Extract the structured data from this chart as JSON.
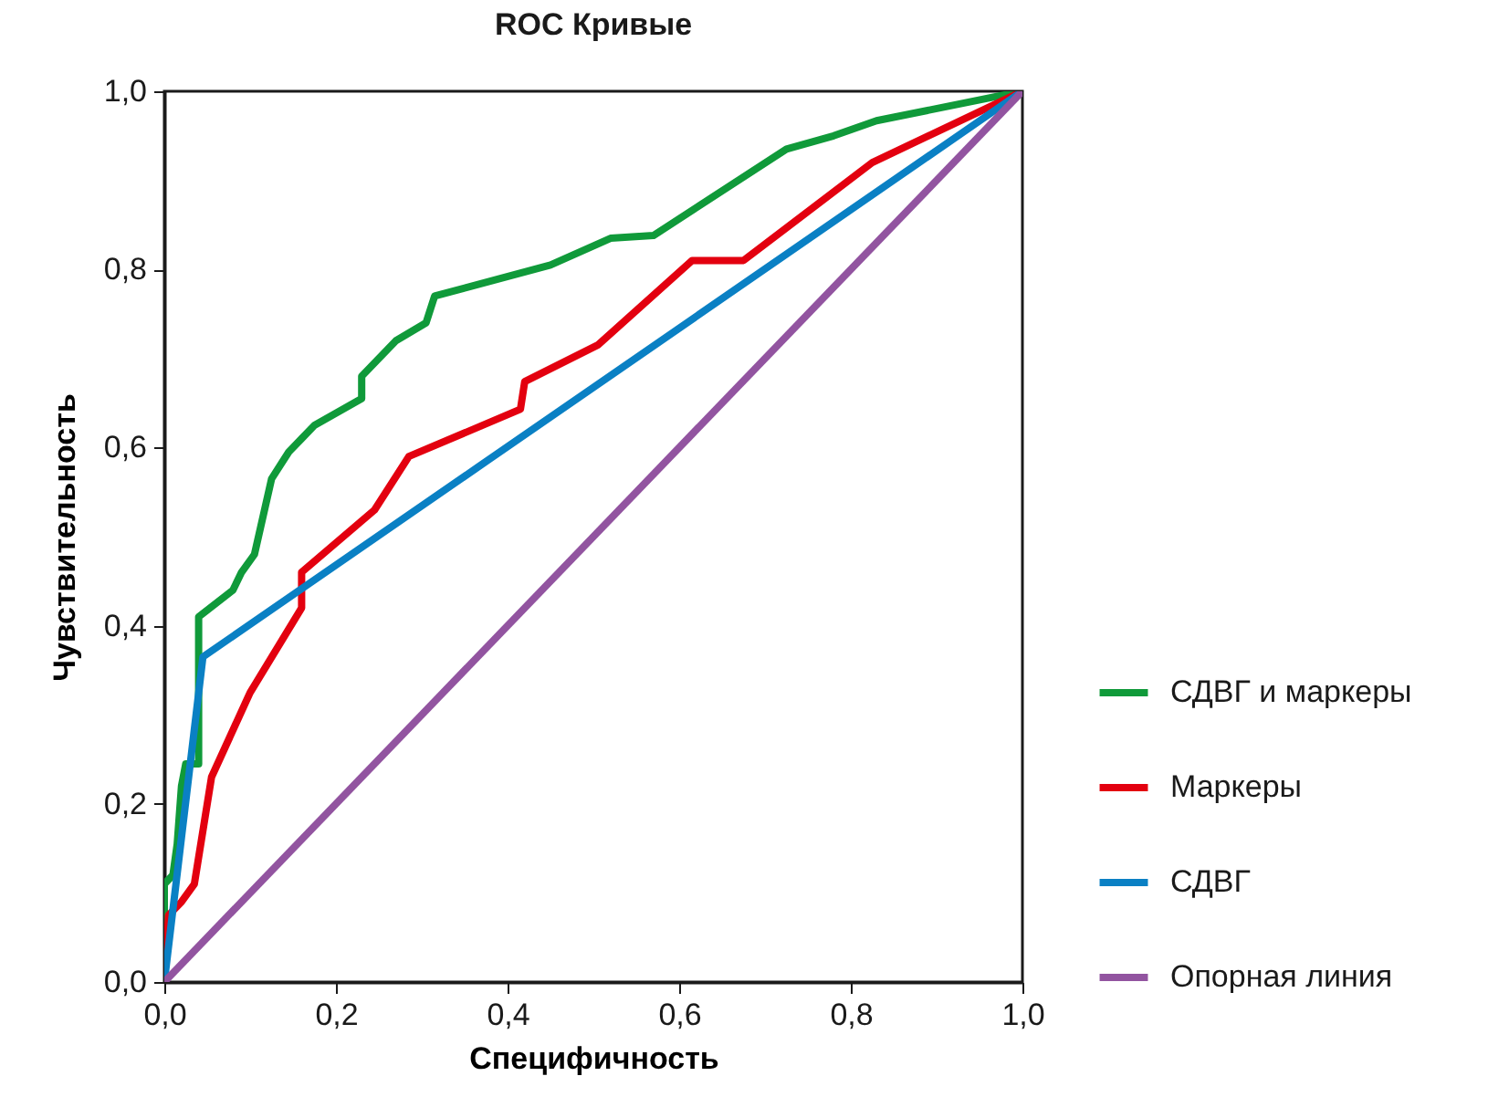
{
  "chart_data": {
    "type": "line",
    "title": "ROC Кривые",
    "xlabel": "Специфичность",
    "ylabel": "Чувствительность",
    "xlim": [
      0,
      1
    ],
    "ylim": [
      0,
      1
    ],
    "xticks": [
      {
        "value": 0,
        "label": "0,0"
      },
      {
        "value": 0.2,
        "label": "0,2"
      },
      {
        "value": 0.4,
        "label": "0,4"
      },
      {
        "value": 0.6,
        "label": "0,6"
      },
      {
        "value": 0.8,
        "label": "0,8"
      },
      {
        "value": 1,
        "label": "1,0"
      }
    ],
    "yticks": [
      {
        "value": 0,
        "label": "0,0"
      },
      {
        "value": 0.2,
        "label": "0,2"
      },
      {
        "value": 0.4,
        "label": "0,4"
      },
      {
        "value": 0.6,
        "label": "0,6"
      },
      {
        "value": 0.8,
        "label": "0,8"
      },
      {
        "value": 1,
        "label": "1,0"
      }
    ],
    "grid": false,
    "legend": "right",
    "marker": "none",
    "line_style": "solid",
    "series": [
      {
        "name": "СДВГ и маркеры",
        "color": "#109a3a",
        "x": [
          0,
          0,
          0.01,
          0.015,
          0.02,
          0.025,
          0.04,
          0.04,
          0.08,
          0.09,
          0.105,
          0.125,
          0.145,
          0.16,
          0.175,
          0.23,
          0.23,
          0.26,
          0.27,
          0.305,
          0.315,
          0.45,
          0.52,
          0.57,
          0.725,
          0.78,
          0.83,
          1
        ],
        "values": [
          0,
          0.11,
          0.12,
          0.155,
          0.22,
          0.245,
          0.245,
          0.41,
          0.44,
          0.46,
          0.48,
          0.565,
          0.595,
          0.61,
          0.625,
          0.655,
          0.68,
          0.71,
          0.72,
          0.74,
          0.77,
          0.805,
          0.835,
          0.838,
          0.935,
          0.95,
          0.967,
          1
        ]
      },
      {
        "name": "Маркеры",
        "color": "#e3000f",
        "x": [
          0,
          0.005,
          0.02,
          0.035,
          0.055,
          0.1,
          0.16,
          0.16,
          0.245,
          0.285,
          0.415,
          0.42,
          0.505,
          0.615,
          0.675,
          0.825,
          1
        ],
        "values": [
          0,
          0.075,
          0.09,
          0.11,
          0.23,
          0.325,
          0.42,
          0.46,
          0.53,
          0.59,
          0.643,
          0.674,
          0.715,
          0.81,
          0.81,
          0.92,
          1
        ]
      },
      {
        "name": "СДВГ",
        "color": "#0a80c4",
        "x": [
          0,
          0.045,
          1
        ],
        "values": [
          0,
          0.365,
          1
        ]
      },
      {
        "name": "Опорная линия",
        "color": "#9254a0",
        "x": [
          0,
          1
        ],
        "values": [
          0,
          1
        ]
      }
    ]
  }
}
